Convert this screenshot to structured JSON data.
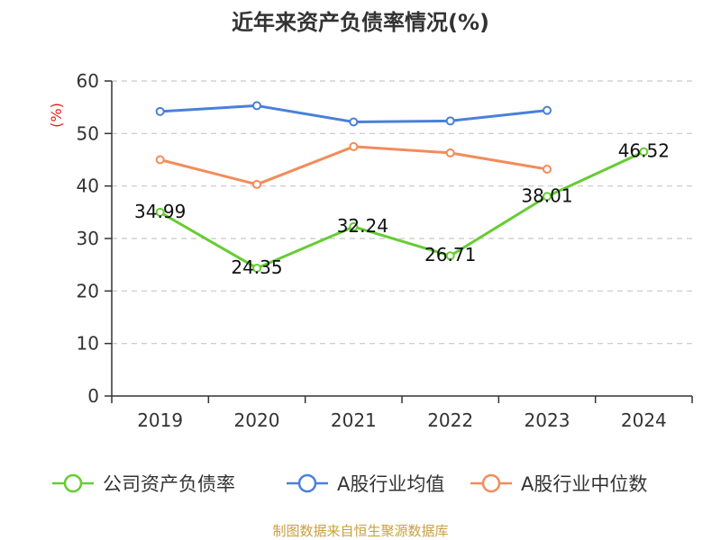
{
  "chart_data": {
    "type": "line",
    "title": "近年来资产负债率情况(%)",
    "ylabel": "(%)",
    "xlabel": "",
    "categories": [
      "2019",
      "2020",
      "2021",
      "2022",
      "2023",
      "2024"
    ],
    "y_ticks": [
      "0",
      "10",
      "20",
      "30",
      "40",
      "50",
      "60"
    ],
    "ylim": [
      0,
      60
    ],
    "grid": true,
    "legend_position": "bottom",
    "series": [
      {
        "name": "公司资产负债率",
        "color": "#66cc33",
        "values": [
          34.99,
          24.35,
          32.24,
          26.71,
          38.01,
          46.52
        ],
        "labels": [
          "34.99",
          "24.35",
          "32.24",
          "26.71",
          "38.01",
          "46.52"
        ]
      },
      {
        "name": "A股行业均值",
        "color": "#4a80d9",
        "values": [
          54.2,
          55.3,
          52.2,
          52.4,
          54.4,
          null
        ]
      },
      {
        "name": "A股行业中位数",
        "color": "#f28c5a",
        "values": [
          45.0,
          40.3,
          47.5,
          46.3,
          43.2,
          null
        ]
      }
    ]
  },
  "source": "制图数据来自恒生聚源数据库"
}
